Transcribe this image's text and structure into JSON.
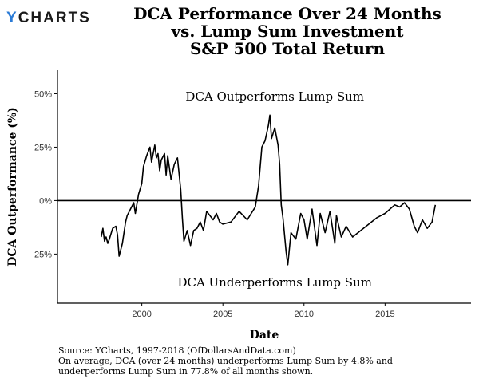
{
  "logo": {
    "mark": "Y",
    "text": "CHARTS"
  },
  "title_lines": [
    "DCA Performance Over 24 Months",
    "vs. Lump Sum Investment",
    "S&P 500 Total Return"
  ],
  "footnotes": [
    "Source:  YCharts, 1997-2018 (OfDollarsAndData.com)",
    "On average, DCA (over 24 months) underperforms Lump Sum by 4.8% and",
    "underperforms Lump Sum in 77.8% of all months shown."
  ],
  "chart_data": {
    "type": "line",
    "title": "DCA Performance Over 24 Months vs. Lump Sum Investment S&P 500 Total Return",
    "xlabel": "Date",
    "ylabel": "DCA Outperformance (%)",
    "xlim": [
      1994.8,
      2020.3
    ],
    "ylim": [
      -48,
      61
    ],
    "x_ticks": [
      2000,
      2005,
      2010,
      2015
    ],
    "x_tick_labels": [
      "2000",
      "2005",
      "2010",
      "2015"
    ],
    "y_ticks": [
      50,
      25,
      0,
      -25
    ],
    "y_tick_labels": [
      "50%",
      "25%",
      "0%",
      "-25%"
    ],
    "reference_line": 0,
    "annotations": [
      {
        "text": "DCA Outperforms Lump Sum",
        "x": 2008.2,
        "y": 49
      },
      {
        "text": "DCA Underperforms Lump Sum",
        "x": 2008.2,
        "y": -38
      }
    ],
    "series": [
      {
        "name": "DCA Outperformance",
        "color": "#000000",
        "x": [
          1997.5,
          1997.6,
          1997.7,
          1997.8,
          1997.9,
          1998.0,
          1998.2,
          1998.4,
          1998.5,
          1998.6,
          1998.8,
          1998.9,
          1999.0,
          1999.1,
          1999.3,
          1999.5,
          1999.6,
          1999.8,
          2000.0,
          2000.1,
          2000.3,
          2000.5,
          2000.6,
          2000.8,
          2000.9,
          2001.0,
          2001.1,
          2001.2,
          2001.4,
          2001.5,
          2001.6,
          2001.8,
          2002.0,
          2002.2,
          2002.4,
          2002.5,
          2002.6,
          2002.8,
          2003.0,
          2003.2,
          2003.4,
          2003.6,
          2003.8,
          2004.0,
          2004.2,
          2004.4,
          2004.6,
          2004.8,
          2005.0,
          2005.5,
          2006.0,
          2006.5,
          2007.0,
          2007.2,
          2007.4,
          2007.6,
          2007.8,
          2007.9,
          2008.0,
          2008.2,
          2008.4,
          2008.5,
          2008.6,
          2008.7,
          2008.8,
          2008.9,
          2009.0,
          2009.2,
          2009.5,
          2009.8,
          2010.0,
          2010.2,
          2010.5,
          2010.8,
          2011.0,
          2011.3,
          2011.6,
          2011.9,
          2012.0,
          2012.3,
          2012.6,
          2013.0,
          2013.5,
          2014.0,
          2014.5,
          2015.0,
          2015.3,
          2015.6,
          2015.9,
          2016.2,
          2016.5,
          2016.8,
          2017.0,
          2017.3,
          2017.6,
          2017.9,
          2018.1
        ],
        "y": [
          -17,
          -13,
          -19,
          -17,
          -20,
          -18,
          -13,
          -12,
          -16,
          -26,
          -20,
          -15,
          -10,
          -7,
          -4,
          -1,
          -6,
          3,
          8,
          16,
          21,
          25,
          18,
          26,
          20,
          22,
          14,
          19,
          22,
          12,
          21,
          10,
          17,
          20,
          5,
          -8,
          -19,
          -14,
          -21,
          -14,
          -13,
          -10,
          -14,
          -5,
          -7,
          -9,
          -6,
          -10,
          -11,
          -10,
          -5,
          -9,
          -3,
          7,
          25,
          28,
          35,
          40,
          29,
          34,
          26,
          17,
          -2,
          -8,
          -16,
          -24,
          -30,
          -15,
          -18,
          -6,
          -9,
          -18,
          -4,
          -21,
          -6,
          -15,
          -5,
          -20,
          -7,
          -17,
          -12,
          -17,
          -14,
          -11,
          -8,
          -6,
          -4,
          -2,
          -3,
          -1,
          -4,
          -12,
          -15,
          -9,
          -13,
          -10,
          -2
        ]
      }
    ]
  }
}
